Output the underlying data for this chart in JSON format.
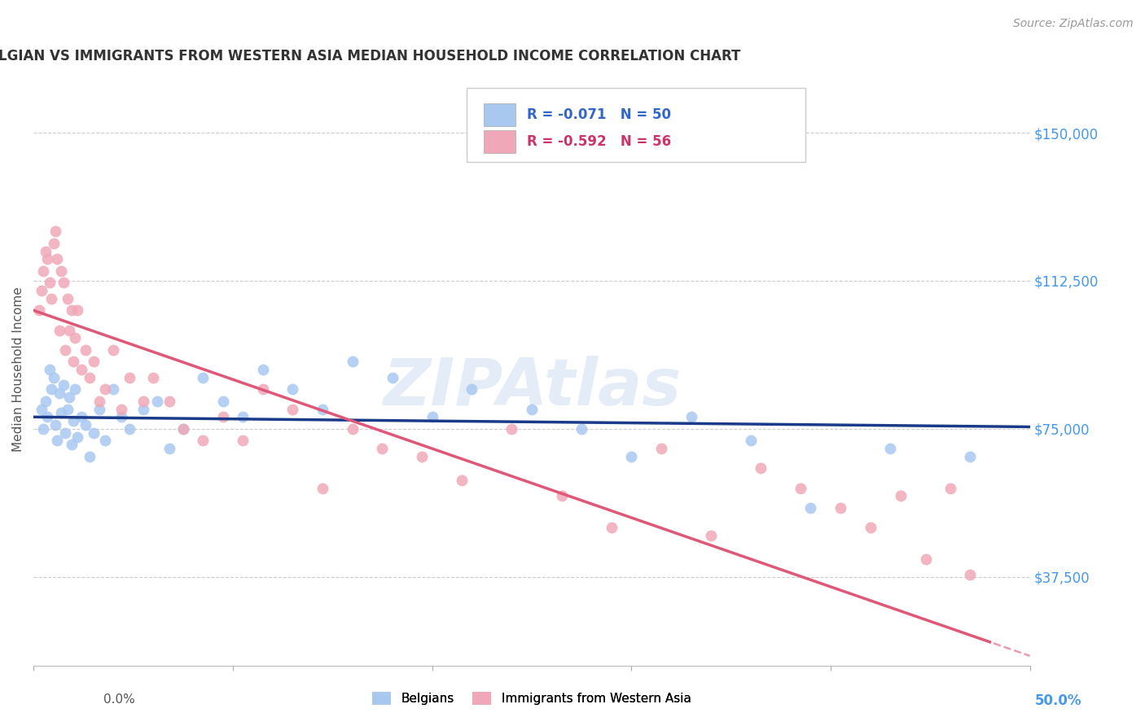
{
  "title": "BELGIAN VS IMMIGRANTS FROM WESTERN ASIA MEDIAN HOUSEHOLD INCOME CORRELATION CHART",
  "source": "Source: ZipAtlas.com",
  "ylabel": "Median Household Income",
  "yticks": [
    37500,
    75000,
    112500,
    150000
  ],
  "xlim": [
    0.0,
    0.5
  ],
  "ylim": [
    15000,
    165000
  ],
  "belgian_color": "#a8c8f0",
  "immigrant_color": "#f0a8b8",
  "belgian_line_color": "#1a3a8a",
  "immigrant_line_color": "#e05878",
  "belgian_R": -0.071,
  "belgian_N": 50,
  "immigrant_R": -0.592,
  "immigrant_N": 56,
  "watermark": "ZIPAtlas",
  "background_color": "#ffffff",
  "grid_color": "#cccccc",
  "belgian_scatter_x": [
    0.004,
    0.005,
    0.006,
    0.007,
    0.008,
    0.009,
    0.01,
    0.011,
    0.012,
    0.013,
    0.014,
    0.015,
    0.016,
    0.017,
    0.018,
    0.019,
    0.02,
    0.021,
    0.022,
    0.024,
    0.026,
    0.028,
    0.03,
    0.033,
    0.036,
    0.04,
    0.044,
    0.048,
    0.055,
    0.062,
    0.068,
    0.075,
    0.085,
    0.095,
    0.105,
    0.115,
    0.13,
    0.145,
    0.16,
    0.18,
    0.2,
    0.22,
    0.25,
    0.275,
    0.3,
    0.33,
    0.36,
    0.39,
    0.43,
    0.47
  ],
  "belgian_scatter_y": [
    80000,
    75000,
    82000,
    78000,
    90000,
    85000,
    88000,
    76000,
    72000,
    84000,
    79000,
    86000,
    74000,
    80000,
    83000,
    71000,
    77000,
    85000,
    73000,
    78000,
    76000,
    68000,
    74000,
    80000,
    72000,
    85000,
    78000,
    75000,
    80000,
    82000,
    70000,
    75000,
    88000,
    82000,
    78000,
    90000,
    85000,
    80000,
    92000,
    88000,
    78000,
    85000,
    80000,
    75000,
    68000,
    78000,
    72000,
    55000,
    70000,
    68000
  ],
  "immigrant_scatter_x": [
    0.003,
    0.004,
    0.005,
    0.006,
    0.007,
    0.008,
    0.009,
    0.01,
    0.011,
    0.012,
    0.013,
    0.014,
    0.015,
    0.016,
    0.017,
    0.018,
    0.019,
    0.02,
    0.021,
    0.022,
    0.024,
    0.026,
    0.028,
    0.03,
    0.033,
    0.036,
    0.04,
    0.044,
    0.048,
    0.055,
    0.06,
    0.068,
    0.075,
    0.085,
    0.095,
    0.105,
    0.115,
    0.13,
    0.145,
    0.16,
    0.175,
    0.195,
    0.215,
    0.24,
    0.265,
    0.29,
    0.315,
    0.34,
    0.365,
    0.385,
    0.405,
    0.42,
    0.435,
    0.448,
    0.46,
    0.47
  ],
  "immigrant_scatter_y": [
    105000,
    110000,
    115000,
    120000,
    118000,
    112000,
    108000,
    122000,
    125000,
    118000,
    100000,
    115000,
    112000,
    95000,
    108000,
    100000,
    105000,
    92000,
    98000,
    105000,
    90000,
    95000,
    88000,
    92000,
    82000,
    85000,
    95000,
    80000,
    88000,
    82000,
    88000,
    82000,
    75000,
    72000,
    78000,
    72000,
    85000,
    80000,
    60000,
    75000,
    70000,
    68000,
    62000,
    75000,
    58000,
    50000,
    70000,
    48000,
    65000,
    60000,
    55000,
    50000,
    58000,
    42000,
    60000,
    38000
  ]
}
